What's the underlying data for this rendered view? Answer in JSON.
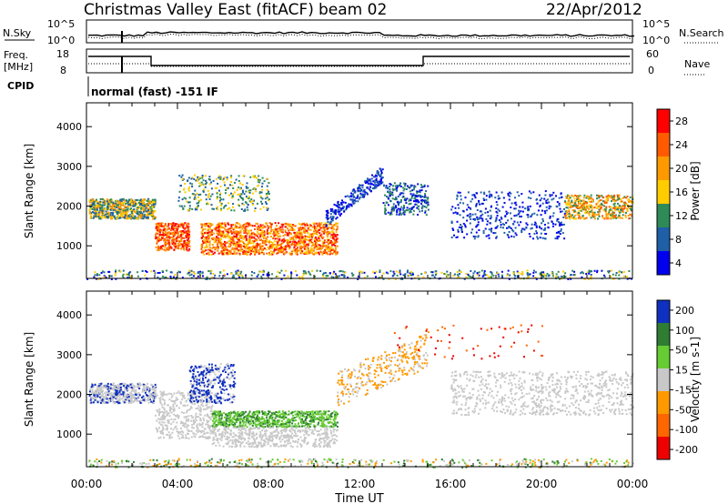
{
  "header": {
    "title": "Christmas Valley East (fitACF)",
    "beam": "beam 02",
    "date": "22/Apr/2012"
  },
  "top_panels": {
    "nsky_label": "N.Sky",
    "nsearch_label": "N.Search",
    "nsky_ticks": [
      "10^5",
      "10^0"
    ],
    "nsearch_ticks": [
      "10^5",
      "10^0"
    ],
    "freq_label": "Freq.",
    "freq_unit": "[MHz]",
    "freq_ticks": [
      "18",
      "8"
    ],
    "nave_label": "Nave",
    "nave_ticks": [
      "60",
      "0"
    ],
    "cpid_label": "CPID",
    "cpid_text": "normal (fast) -151 IF"
  },
  "chart_data": [
    {
      "type": "heatmap",
      "name": "power-panel",
      "ylabel": "Slant Range [km]",
      "yticks": [
        1000,
        2000,
        3000,
        4000
      ],
      "ylim": [
        180,
        4600
      ],
      "xlim": [
        0,
        24
      ],
      "colorbar": {
        "label": "Power [dB]",
        "ticks": [
          "28",
          "24",
          "20",
          "16",
          "12",
          "8",
          "4"
        ],
        "colors": [
          "#ff0000",
          "#ff5a00",
          "#ff9900",
          "#ffcc00",
          "#2e8b57",
          "#1e5fa8",
          "#0000ee"
        ]
      }
    },
    {
      "type": "heatmap",
      "name": "velocity-panel",
      "ylabel": "Slant Range [km]",
      "yticks": [
        1000,
        2000,
        3000,
        4000
      ],
      "ylim": [
        180,
        4600
      ],
      "xlim": [
        0,
        24
      ],
      "xticks": [
        "00:00",
        "04:00",
        "08:00",
        "12:00",
        "16:00",
        "20:00",
        "00:00"
      ],
      "xlabel": "Time UT",
      "colorbar": {
        "label": "Velocity [m s-1]",
        "ticks": [
          "200",
          "100",
          "50",
          "15",
          "-15",
          "-50",
          "-100",
          "-200"
        ],
        "colors": [
          "#1030c0",
          "#2e7d32",
          "#66cc33",
          "#c8c8c8",
          "#ff9900",
          "#ff6600",
          "#ee0000"
        ]
      }
    }
  ]
}
